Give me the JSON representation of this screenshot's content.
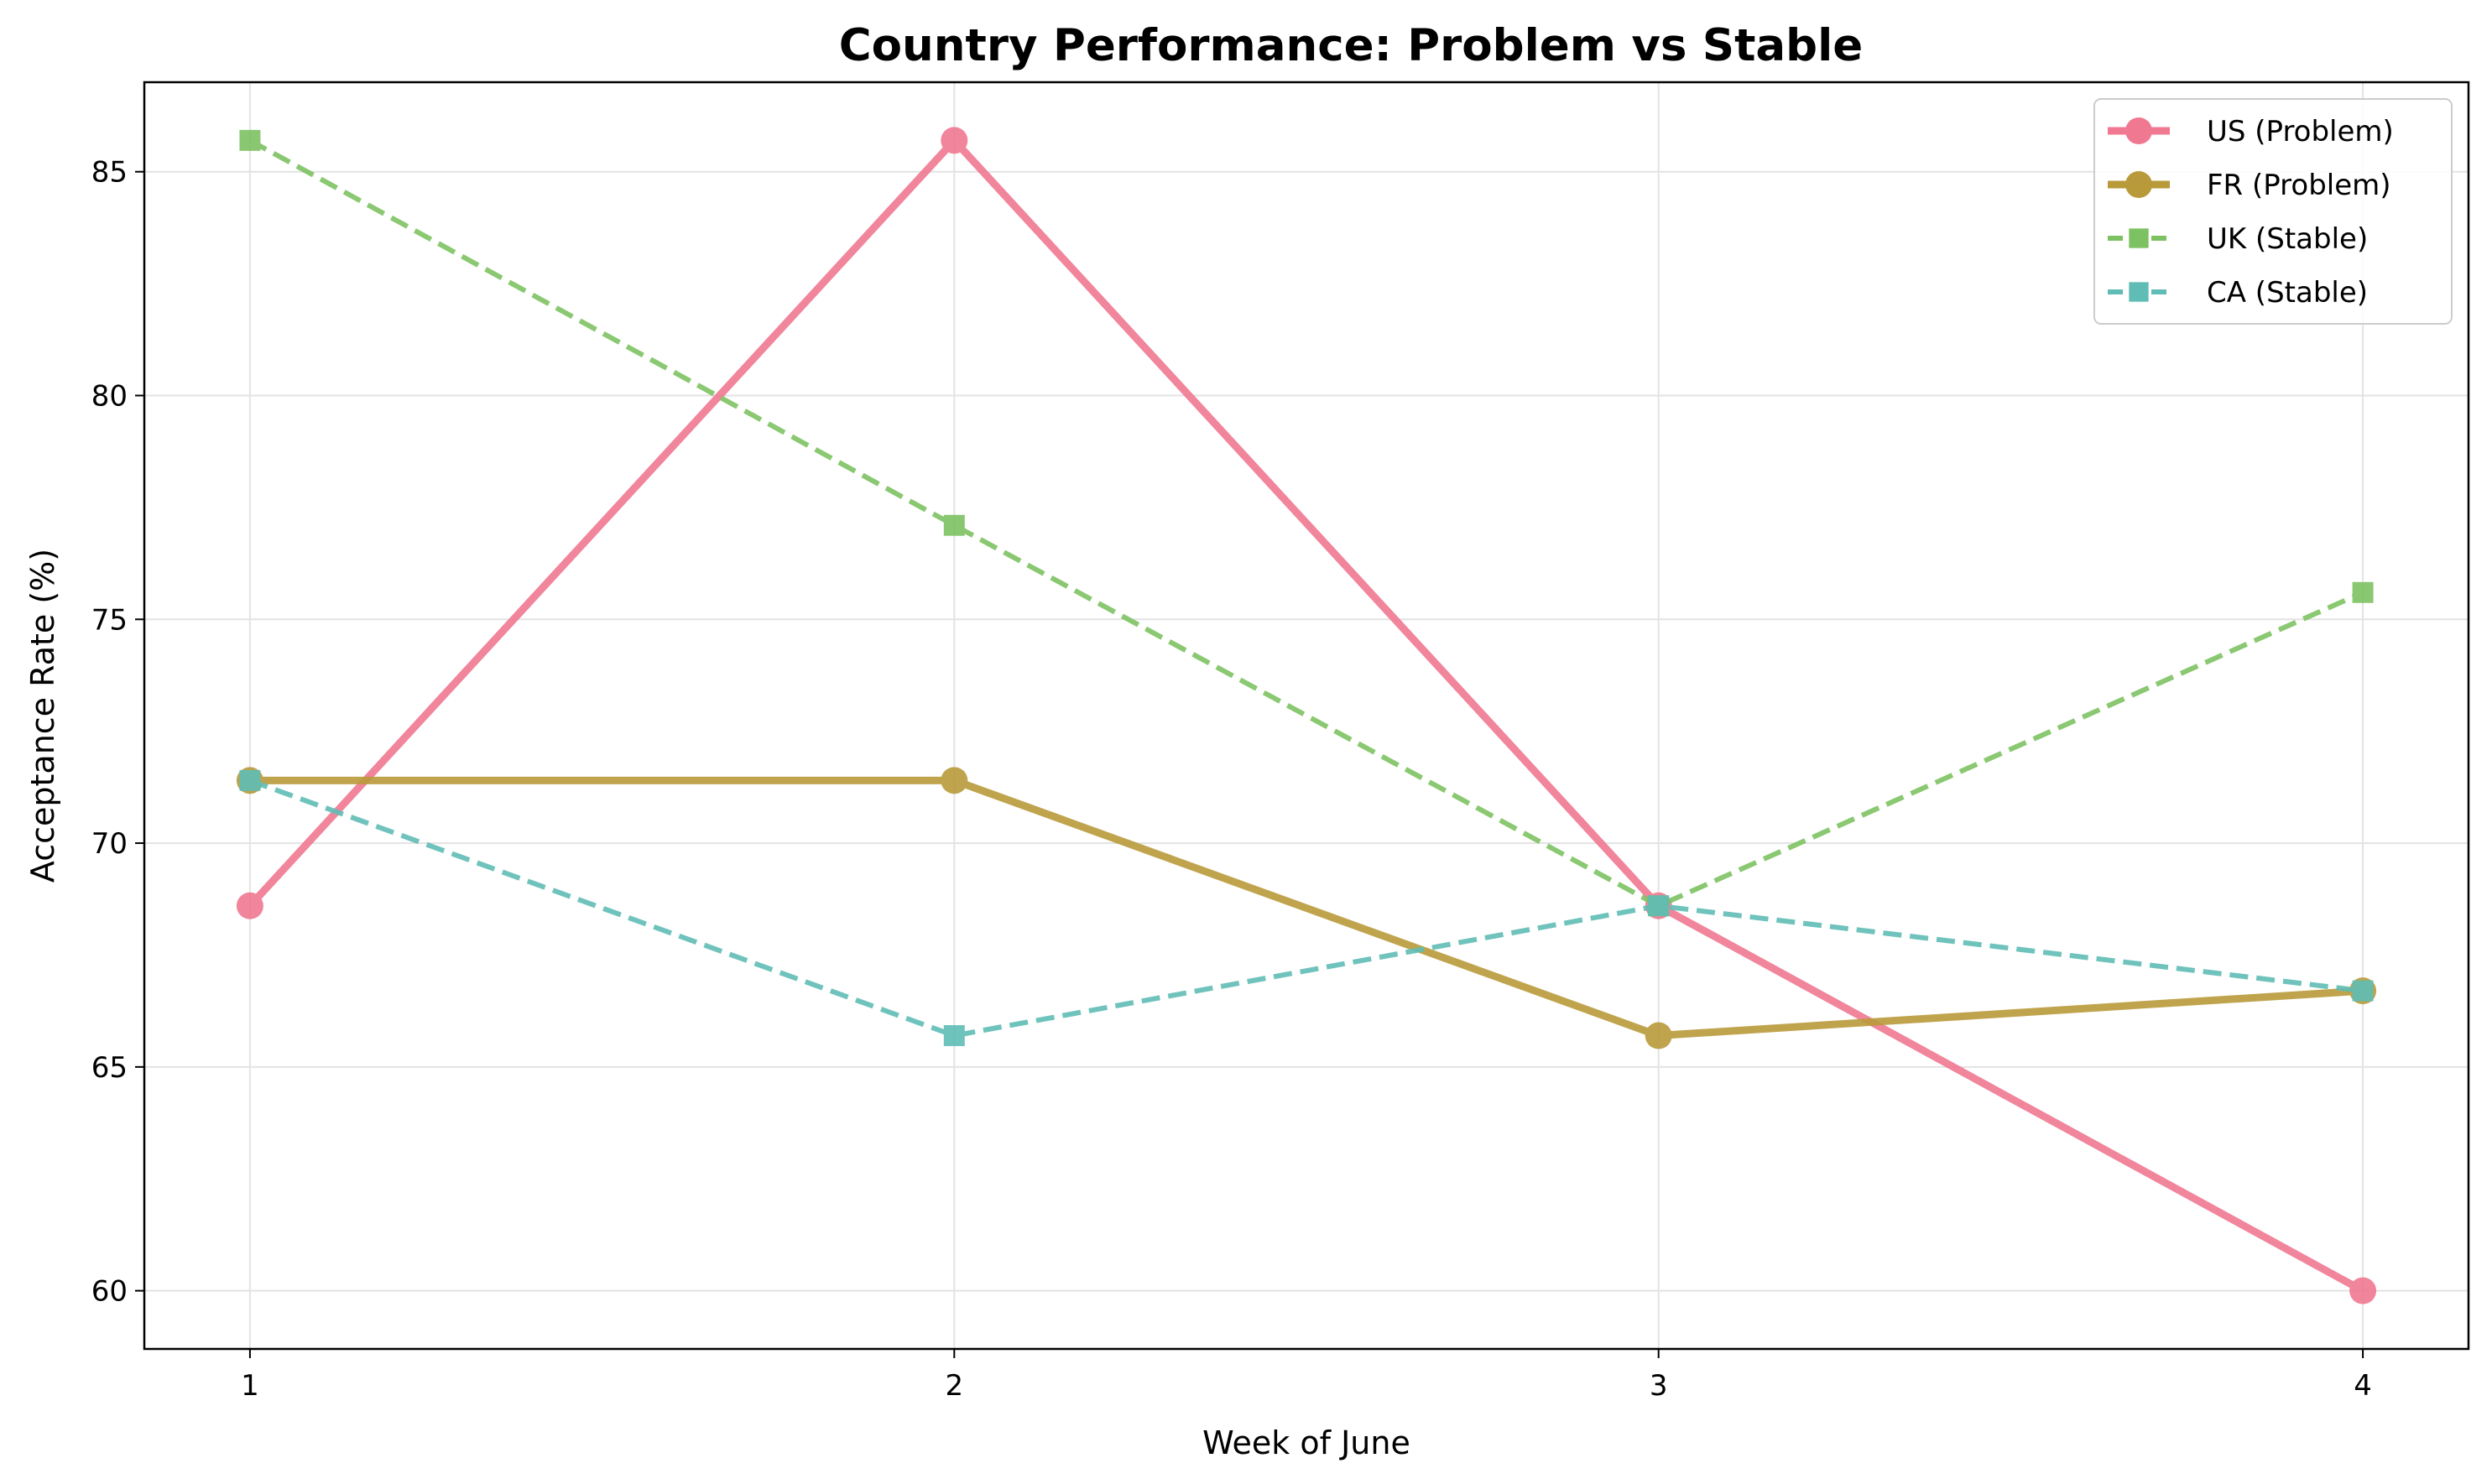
{
  "chart_data": {
    "type": "line",
    "title": "Country Performance: Problem vs Stable",
    "xlabel": "Week of June",
    "ylabel": "Acceptance Rate (%)",
    "x": [
      1,
      2,
      3,
      4
    ],
    "xticks": [
      "1",
      "2",
      "3",
      "4"
    ],
    "xlim": [
      0.85,
      4.15
    ],
    "ylim": [
      58.7,
      87.0
    ],
    "yticks": [
      "60",
      "65",
      "70",
      "75",
      "80",
      "85"
    ],
    "grid": true,
    "legend_position": "top-right",
    "series": [
      {
        "name": "US (Problem)",
        "values": [
          68.6,
          85.7,
          68.6,
          60.0
        ],
        "color": "#f07891",
        "style": "solid",
        "marker": "circle"
      },
      {
        "name": "FR (Problem)",
        "values": [
          71.4,
          71.4,
          65.7,
          66.7
        ],
        "color": "#b99a3a",
        "style": "solid",
        "marker": "circle"
      },
      {
        "name": "UK (Stable)",
        "values": [
          85.7,
          77.1,
          68.6,
          75.6
        ],
        "color": "#7dc262",
        "style": "dashed",
        "marker": "square"
      },
      {
        "name": "CA (Stable)",
        "values": [
          71.4,
          65.7,
          68.6,
          66.7
        ],
        "color": "#5fbdb5",
        "style": "dashed",
        "marker": "square"
      }
    ]
  }
}
